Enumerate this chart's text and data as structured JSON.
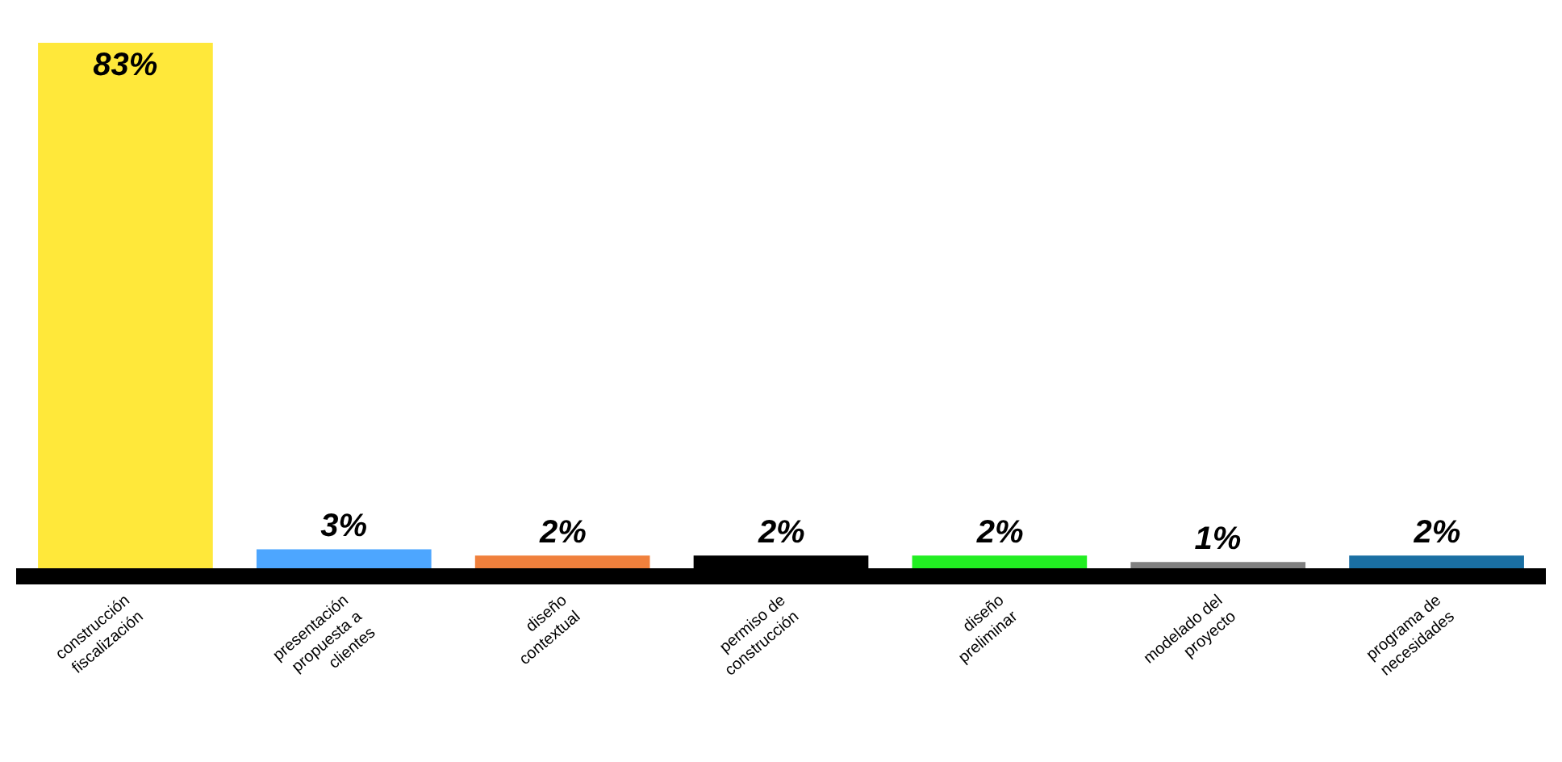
{
  "chart_data": {
    "type": "bar",
    "categories": [
      "construcción fiscalización",
      "presentación propuesta a clientes",
      "diseño contextual",
      "permiso de construcción",
      "diseño preliminar",
      "modelado del proyecto",
      "programa de necesidades"
    ],
    "values": [
      83,
      3,
      2,
      2,
      2,
      1,
      2
    ],
    "value_labels": [
      "83%",
      "3%",
      "2%",
      "2%",
      "2%",
      "1%",
      "2%"
    ],
    "colors": [
      "#ffe83a",
      "#4da6ff",
      "#f0803c",
      "#000000",
      "#22ee22",
      "#808080",
      "#1a6fa3"
    ]
  }
}
